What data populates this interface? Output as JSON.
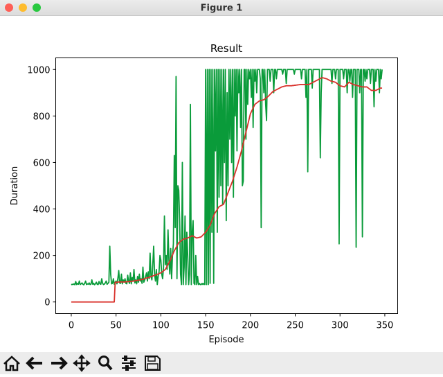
{
  "window_title": "Figure 1",
  "chart_data": {
    "type": "line",
    "title": "Result",
    "x_label": "Episode",
    "y_label": "Duration",
    "x": [
      0,
      1,
      2,
      3,
      4,
      5,
      6,
      7,
      8,
      9,
      10,
      11,
      12,
      13,
      14,
      15,
      16,
      17,
      18,
      19,
      20,
      21,
      22,
      23,
      24,
      25,
      26,
      27,
      28,
      29,
      30,
      31,
      32,
      33,
      34,
      35,
      36,
      37,
      38,
      39,
      40,
      41,
      42,
      43,
      44,
      45,
      46,
      47,
      48,
      49,
      50,
      51,
      52,
      53,
      54,
      55,
      56,
      57,
      58,
      59,
      60,
      61,
      62,
      63,
      64,
      65,
      66,
      67,
      68,
      69,
      70,
      71,
      72,
      73,
      74,
      75,
      76,
      77,
      78,
      79,
      80,
      81,
      82,
      83,
      84,
      85,
      86,
      87,
      88,
      89,
      90,
      91,
      92,
      93,
      94,
      95,
      96,
      97,
      98,
      99,
      100,
      101,
      102,
      103,
      104,
      105,
      106,
      107,
      108,
      109,
      110,
      111,
      112,
      113,
      114,
      115,
      116,
      117,
      118,
      119,
      120,
      121,
      122,
      123,
      124,
      125,
      126,
      127,
      128,
      129,
      130,
      131,
      132,
      133,
      134,
      135,
      136,
      137,
      138,
      139,
      140,
      141,
      142,
      143,
      144,
      145,
      146,
      147,
      148,
      149,
      150,
      151,
      152,
      153,
      154,
      155,
      156,
      157,
      158,
      159,
      160,
      161,
      162,
      163,
      164,
      165,
      166,
      167,
      168,
      169,
      170,
      171,
      172,
      173,
      174,
      175,
      176,
      177,
      178,
      179,
      180,
      181,
      182,
      183,
      184,
      185,
      186,
      187,
      188,
      189,
      190,
      191,
      192,
      193,
      194,
      195,
      196,
      197,
      198,
      199,
      200,
      201,
      202,
      203,
      204,
      205,
      206,
      207,
      208,
      209,
      210,
      211,
      212,
      213,
      214,
      215,
      216,
      217,
      218,
      219,
      220,
      221,
      222,
      223,
      224,
      225,
      226,
      227,
      228,
      229,
      230,
      231,
      232,
      233,
      234,
      235,
      236,
      237,
      238,
      239,
      240,
      241,
      242,
      243,
      244,
      245,
      246,
      247,
      248,
      249,
      250,
      251,
      252,
      253,
      254,
      255,
      256,
      257,
      258,
      259,
      260,
      261,
      262,
      263,
      264,
      265,
      266,
      267,
      268,
      269,
      270,
      271,
      272,
      273,
      274,
      275,
      276,
      277,
      278,
      279,
      280,
      281,
      282,
      283,
      284,
      285,
      286,
      287,
      288,
      289,
      290,
      291,
      292,
      293,
      294,
      295,
      296,
      297,
      298,
      299,
      300,
      301,
      302,
      303,
      304,
      305,
      306,
      307,
      308,
      309,
      310,
      311,
      312,
      313,
      314,
      315,
      316,
      317,
      318,
      319,
      320,
      321,
      322,
      323,
      324,
      325,
      326,
      327,
      328,
      329,
      330,
      331,
      332,
      333,
      334,
      335,
      336,
      337,
      338,
      339,
      340,
      341,
      342,
      343,
      344,
      345,
      346,
      347
    ],
    "series": [
      {
        "color": "#0a9b3a",
        "values": [
          74,
          76,
          75,
          78,
          74,
          88,
          75,
          80,
          76,
          90,
          75,
          78,
          82,
          76,
          74,
          80,
          90,
          75,
          78,
          76,
          82,
          75,
          77,
          95,
          76,
          80,
          74,
          78,
          85,
          76,
          75,
          88,
          78,
          76,
          100,
          80,
          75,
          77,
          82,
          90,
          76,
          80,
          85,
          240,
          120,
          78,
          80,
          100,
          76,
          85,
          90,
          78,
          100,
          135,
          82,
          80,
          120,
          78,
          95,
          85,
          100,
          80,
          78,
          115,
          90,
          80,
          125,
          78,
          105,
          90,
          140,
          82,
          95,
          78,
          110,
          85,
          120,
          90,
          100,
          80,
          150,
          85,
          95,
          110,
          125,
          90,
          130,
          100,
          210,
          110,
          95,
          160,
          240,
          120,
          90,
          140,
          75,
          110,
          130,
          200,
          180,
          120,
          100,
          150,
          370,
          160,
          200,
          140,
          310,
          180,
          120,
          230,
          100,
          200,
          250,
          630,
          320,
          970,
          100,
          500,
          480,
          350,
          120,
          75,
          600,
          75,
          150,
          370,
          75,
          300,
          200,
          75,
          120,
          850,
          75,
          300,
          350,
          80,
          75,
          200,
          75,
          110,
          75,
          80,
          75,
          75,
          80,
          75,
          80,
          75,
          1000,
          75,
          1000,
          75,
          1000,
          80,
          1000,
          300,
          1000,
          80,
          1000,
          650,
          1000,
          300,
          1000,
          450,
          1000,
          500,
          1000,
          420,
          1000,
          600,
          1000,
          350,
          900,
          500,
          1000,
          700,
          1000,
          600,
          1000,
          450,
          1000,
          800,
          1000,
          650,
          1000,
          900,
          1000,
          750,
          1000,
          500,
          520,
          1000,
          1000,
          700,
          1000,
          850,
          1000,
          960,
          1000,
          880,
          1000,
          750,
          1000,
          950,
          1000,
          900,
          1000,
          1000,
          1000,
          960,
          320,
          1000,
          1000,
          900,
          1000,
          850,
          780,
          1000,
          1000,
          1000,
          950,
          1000,
          1000,
          1000,
          900,
          1000,
          1000,
          960,
          1000,
          1000,
          1000,
          1000,
          1000,
          1000,
          980,
          1000,
          1000,
          1000,
          940,
          1000,
          1000,
          1000,
          1000,
          1000,
          1000,
          1000,
          1000,
          980,
          1000,
          1000,
          1000,
          1000,
          1000,
          1000,
          1000,
          960,
          1000,
          1000,
          1000,
          1000,
          880,
          1000,
          560,
          1000,
          1000,
          1000,
          1000,
          920,
          1000,
          1000,
          1000,
          1000,
          1000,
          1000,
          1000,
          1000,
          620,
          900,
          1000,
          1000,
          1000,
          1000,
          1000,
          1000,
          1000,
          1000,
          1000,
          1000,
          1000,
          940,
          1000,
          1000,
          1000,
          960,
          1000,
          1000,
          1000,
          250,
          1000,
          1000,
          1000,
          1000,
          960,
          1000,
          1000,
          1000,
          900,
          1000,
          1000,
          950,
          1000,
          1000,
          880,
          1000,
          1000,
          1000,
          235,
          1000,
          1000,
          1000,
          900,
          1000,
          1000,
          280,
          1000,
          1000,
          950,
          1000,
          960,
          1000,
          1000,
          1000,
          940,
          1000,
          1000,
          1000,
          840,
          1000,
          950,
          1000,
          1000,
          1000,
          900,
          1000,
          960,
          1000
        ]
      },
      {
        "color": "#d9312b",
        "values": [
          0,
          0,
          0,
          0,
          0,
          0,
          0,
          0,
          0,
          0,
          0,
          0,
          0,
          0,
          0,
          0,
          0,
          0,
          0,
          0,
          0,
          0,
          0,
          0,
          0,
          0,
          0,
          0,
          0,
          0,
          0,
          0,
          0,
          0,
          0,
          0,
          0,
          0,
          0,
          0,
          0,
          0,
          0,
          0,
          0,
          0,
          0,
          0,
          0,
          84,
          85,
          85,
          85,
          86,
          86,
          86,
          86,
          86,
          86,
          86,
          86,
          87,
          87,
          87,
          88,
          88,
          88,
          89,
          89,
          90,
          90,
          91,
          92,
          92,
          93,
          94,
          94,
          95,
          96,
          97,
          97,
          99,
          100,
          102,
          103,
          104,
          105,
          106,
          108,
          109,
          110,
          112,
          113,
          115,
          116,
          118,
          119,
          120,
          122,
          124,
          125,
          128,
          131,
          134,
          137,
          140,
          147,
          154,
          161,
          168,
          175,
          184,
          193,
          202,
          211,
          220,
          227,
          234,
          241,
          248,
          255,
          258,
          261,
          264,
          267,
          270,
          271,
          272,
          273,
          274,
          275,
          277,
          279,
          281,
          283,
          285,
          283,
          281,
          279,
          277,
          275,
          276,
          277,
          278,
          279,
          280,
          284,
          288,
          292,
          296,
          300,
          306,
          312,
          318,
          324,
          330,
          340,
          350,
          360,
          370,
          380,
          386,
          392,
          398,
          404,
          410,
          412,
          414,
          416,
          418,
          420,
          430,
          440,
          450,
          460,
          470,
          480,
          490,
          500,
          510,
          520,
          532,
          544,
          556,
          568,
          580,
          594,
          608,
          622,
          636,
          650,
          666,
          682,
          698,
          714,
          730,
          746,
          762,
          778,
          794,
          810,
          818,
          826,
          834,
          842,
          850,
          853,
          856,
          859,
          862,
          865,
          866,
          867,
          868,
          869,
          870,
          873,
          876,
          879,
          882,
          885,
          889,
          893,
          897,
          901,
          905,
          907,
          909,
          911,
          913,
          915,
          917,
          919,
          921,
          923,
          925,
          926,
          927,
          928,
          929,
          930,
          930,
          930,
          930,
          930,
          930,
          930,
          931,
          931,
          932,
          932,
          933,
          933,
          934,
          934,
          935,
          935,
          935,
          935,
          935,
          935,
          935,
          935,
          935,
          935,
          935,
          937,
          939,
          941,
          943,
          945,
          947,
          949,
          951,
          953,
          955,
          957,
          959,
          961,
          963,
          965,
          964,
          963,
          962,
          961,
          960,
          958,
          956,
          954,
          952,
          950,
          949,
          948,
          947,
          946,
          945,
          942,
          939,
          936,
          933,
          930,
          929,
          928,
          927,
          926,
          925,
          929,
          933,
          937,
          941,
          945,
          943,
          941,
          939,
          937,
          935,
          934,
          933,
          932,
          931,
          930,
          929,
          928,
          927,
          926,
          925,
          925,
          925,
          925,
          925,
          925,
          922,
          919,
          916,
          913,
          910,
          910,
          910,
          910,
          910,
          910,
          912,
          914,
          916,
          918,
          920,
          920,
          920
        ]
      }
    ],
    "xlim": [
      -17.35,
      364.35
    ],
    "xticks": [
      0,
      50,
      100,
      150,
      200,
      250,
      300,
      350
    ],
    "ylim": [
      -50,
      1050
    ],
    "yticks": [
      0,
      200,
      400,
      600,
      800,
      1000
    ],
    "grid": false
  }
}
